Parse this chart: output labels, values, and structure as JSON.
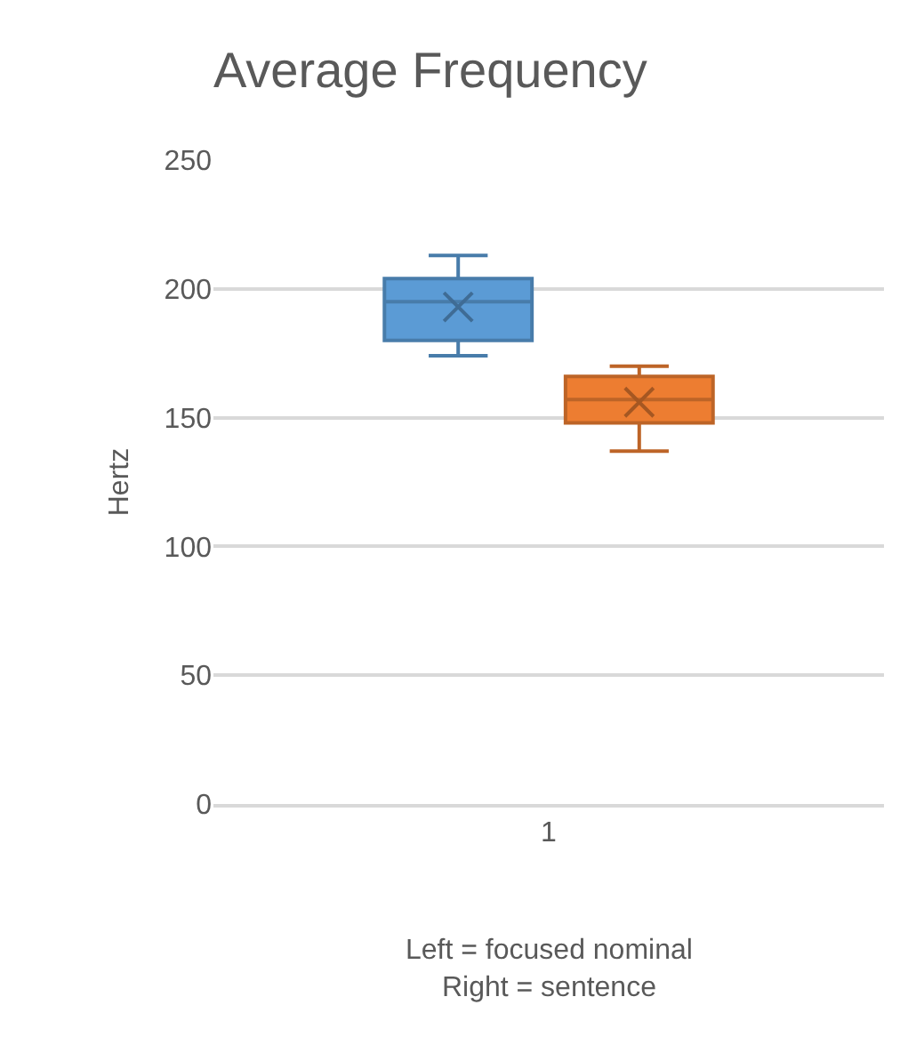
{
  "chart_data": {
    "type": "box",
    "title": "Average Frequency",
    "ylabel": "Hertz",
    "categories": [
      "1"
    ],
    "series": [
      {
        "color": "#5b9bd5",
        "boxes": [
          {
            "low": 174,
            "q1": 180,
            "median": 195,
            "q3": 204,
            "high": 213,
            "mean": 193
          }
        ]
      },
      {
        "color": "#ed7d31",
        "boxes": [
          {
            "low": 137,
            "q1": 148,
            "median": 157,
            "q3": 166,
            "high": 170,
            "mean": 156
          }
        ]
      }
    ],
    "ylim": [
      0,
      250
    ],
    "yticks": [
      0,
      50,
      100,
      150,
      200,
      250
    ],
    "grid": "y",
    "marker": "cross",
    "annotations": [
      "Left = focused nominal\nRight = sentence"
    ]
  }
}
